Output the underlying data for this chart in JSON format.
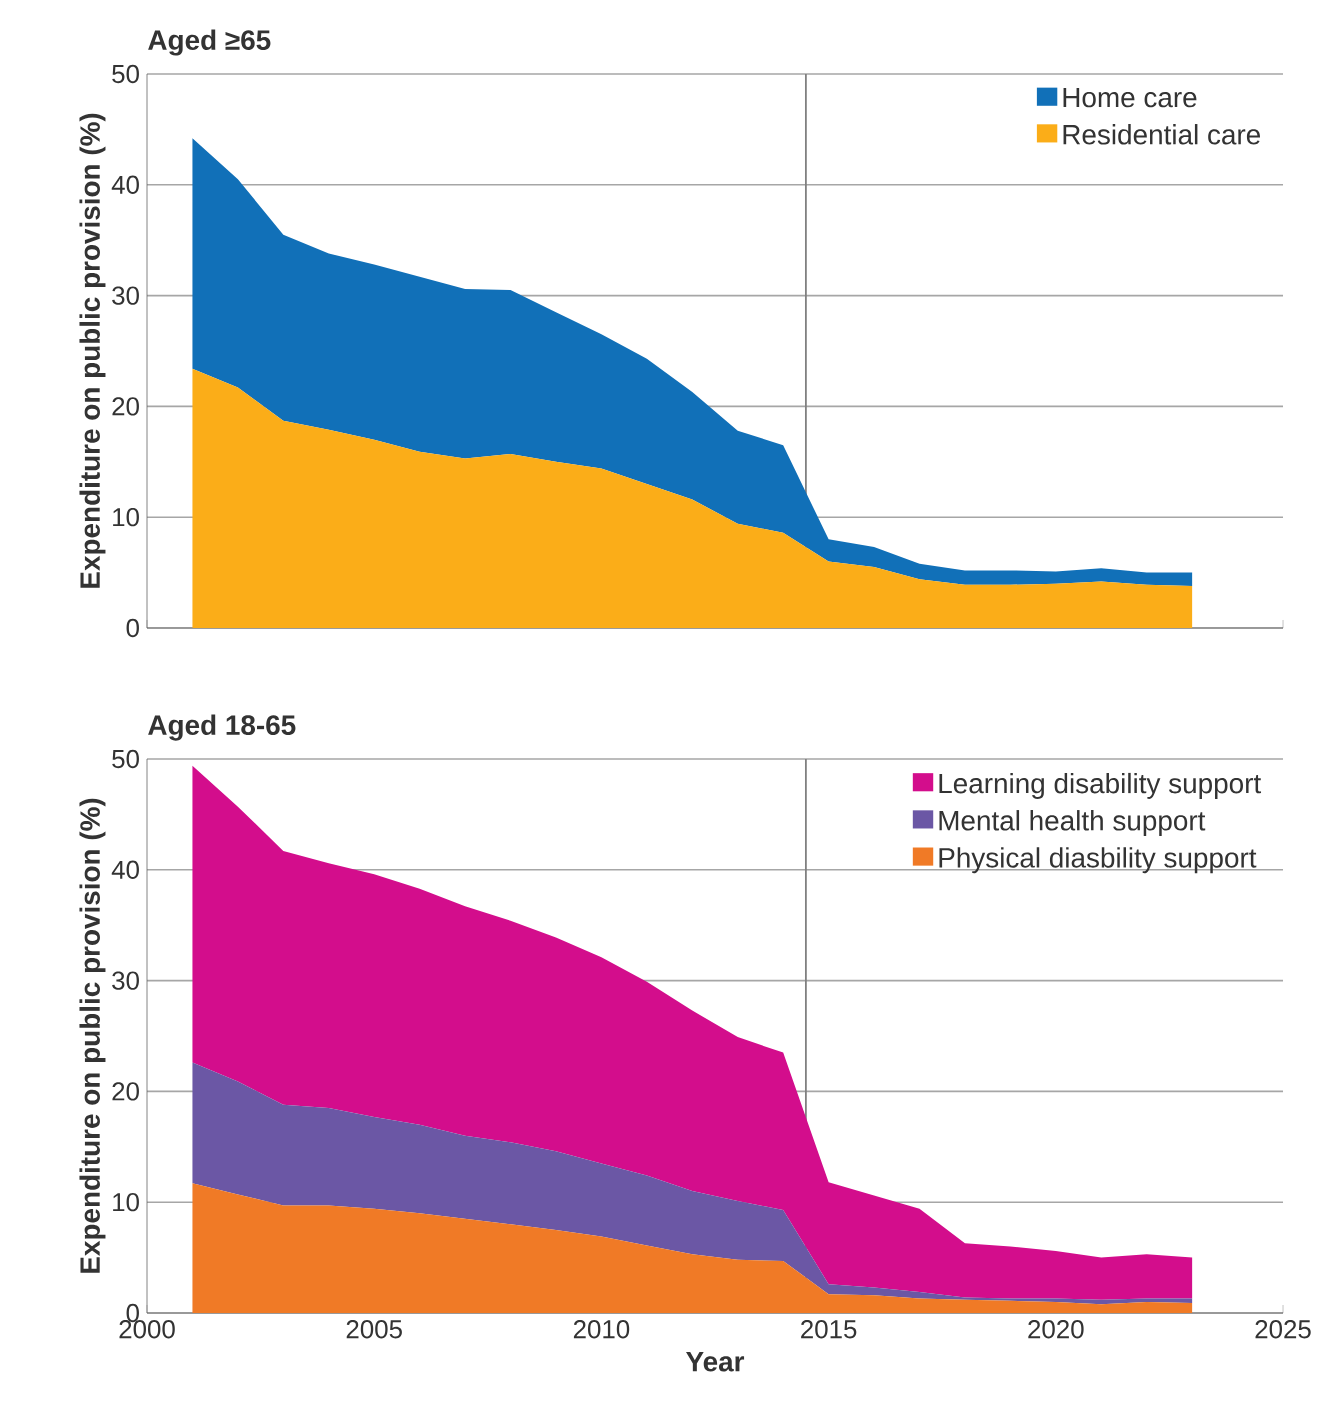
{
  "chart_data": [
    {
      "type": "area",
      "title": "Aged ≥65",
      "ylabel": "Expenditure on public provision (%)",
      "stacked": true,
      "x": [
        2001,
        2002,
        2003,
        2004,
        2005,
        2006,
        2007,
        2008,
        2009,
        2010,
        2011,
        2012,
        2013,
        2014,
        2015,
        2016,
        2017,
        2018,
        2019,
        2020,
        2021,
        2022,
        2023
      ],
      "series": [
        {
          "name": "Residential care",
          "color": "#fbad18",
          "values": [
            23.4,
            21.7,
            18.7,
            17.9,
            17.0,
            15.9,
            15.3,
            15.7,
            15.0,
            14.4,
            13.0,
            11.6,
            9.4,
            8.6,
            6.0,
            5.5,
            4.4,
            3.9,
            3.9,
            4.0,
            4.2,
            3.9,
            3.8
          ]
        },
        {
          "name": "Home care",
          "color": "#1170b8",
          "values": [
            20.8,
            18.8,
            16.8,
            15.9,
            15.8,
            15.8,
            15.3,
            14.8,
            13.5,
            12.1,
            11.3,
            9.7,
            8.4,
            7.9,
            2.0,
            1.8,
            1.4,
            1.3,
            1.3,
            1.1,
            1.2,
            1.1,
            1.2
          ]
        }
      ],
      "xlim": [
        2000,
        2025
      ],
      "xticks": [
        2000,
        2005,
        2010,
        2015,
        2020,
        2025
      ],
      "ylim": [
        0,
        50
      ],
      "yticks": [
        0,
        10,
        20,
        30,
        40,
        50
      ],
      "ref_lines": [
        {
          "axis": "x",
          "value": 2014.5,
          "color": "#808080"
        }
      ],
      "grid": "y",
      "legend": "top right",
      "tick_labels": "y"
    },
    {
      "type": "area",
      "title": "Aged 18-65",
      "xlabel": "Year",
      "ylabel": "Expenditure on public provision (%)",
      "stacked": true,
      "x": [
        2001,
        2002,
        2003,
        2004,
        2005,
        2006,
        2007,
        2008,
        2009,
        2010,
        2011,
        2012,
        2013,
        2014,
        2015,
        2016,
        2017,
        2018,
        2019,
        2020,
        2021,
        2022,
        2023
      ],
      "series": [
        {
          "name": "Physical diasbility support",
          "color": "#f07a26",
          "values": [
            11.7,
            10.7,
            9.7,
            9.7,
            9.4,
            9.0,
            8.5,
            8.0,
            7.5,
            6.9,
            6.1,
            5.3,
            4.8,
            4.7,
            1.7,
            1.6,
            1.3,
            1.2,
            1.1,
            1.0,
            0.8,
            1.0,
            0.9
          ]
        },
        {
          "name": "Mental health support",
          "color": "#6b57a5",
          "values": [
            10.9,
            10.2,
            9.1,
            8.8,
            8.3,
            8.0,
            7.5,
            7.4,
            7.1,
            6.6,
            6.3,
            5.7,
            5.3,
            4.6,
            0.9,
            0.7,
            0.6,
            0.2,
            0.2,
            0.3,
            0.4,
            0.3,
            0.4
          ]
        },
        {
          "name": "Learning disability support",
          "color": "#d30d8c",
          "values": [
            26.8,
            24.8,
            22.9,
            22.1,
            21.9,
            21.3,
            20.7,
            20.0,
            19.3,
            18.6,
            17.5,
            16.3,
            14.8,
            14.2,
            9.2,
            8.3,
            7.5,
            4.9,
            4.7,
            4.3,
            3.8,
            4.0,
            3.7
          ]
        }
      ],
      "xlim": [
        2000,
        2025
      ],
      "xticks": [
        2000,
        2005,
        2010,
        2015,
        2020,
        2025
      ],
      "ylim": [
        0,
        50
      ],
      "yticks": [
        0,
        10,
        20,
        30,
        40,
        50
      ],
      "ref_lines": [
        {
          "axis": "x",
          "value": 2014.5,
          "color": "#808080"
        }
      ],
      "grid": "y",
      "legend": "top right"
    }
  ]
}
